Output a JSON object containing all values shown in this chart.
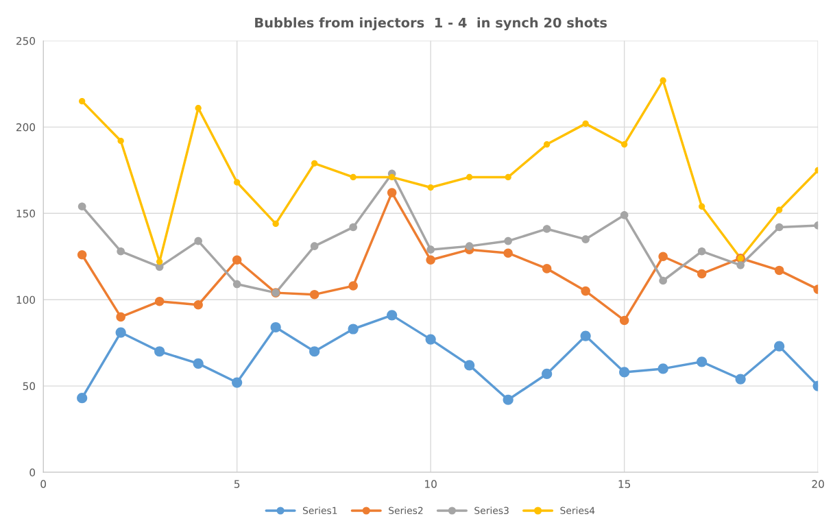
{
  "chart_data": {
    "type": "line",
    "title": "Bubbles from injectors  1 - 4  in synch 20 shots",
    "x": [
      1,
      2,
      3,
      4,
      5,
      6,
      7,
      8,
      9,
      10,
      11,
      12,
      13,
      14,
      15,
      16,
      17,
      18,
      19,
      20
    ],
    "series": [
      {
        "name": "Series1",
        "color": "#5b9bd5",
        "values": [
          43,
          81,
          70,
          63,
          52,
          84,
          70,
          83,
          91,
          77,
          62,
          42,
          57,
          79,
          58,
          60,
          64,
          54,
          73,
          50
        ]
      },
      {
        "name": "Series2",
        "color": "#ed7d31",
        "values": [
          126,
          90,
          99,
          97,
          123,
          104,
          103,
          108,
          162,
          123,
          129,
          127,
          118,
          105,
          88,
          125,
          115,
          124,
          117,
          106
        ]
      },
      {
        "name": "Series3",
        "color": "#a5a5a5",
        "values": [
          154,
          128,
          119,
          134,
          109,
          104,
          131,
          142,
          173,
          129,
          131,
          134,
          141,
          135,
          149,
          111,
          128,
          120,
          142,
          143
        ]
      },
      {
        "name": "Series4",
        "color": "#ffc000",
        "values": [
          215,
          192,
          122,
          211,
          168,
          144,
          179,
          171,
          171,
          165,
          171,
          171,
          190,
          202,
          190,
          227,
          154,
          124,
          152,
          175
        ]
      }
    ],
    "xlim": [
      0,
      20
    ],
    "xticks": [
      0,
      5,
      10,
      15,
      20
    ],
    "ylim": [
      0,
      250
    ],
    "yticks": [
      0,
      50,
      100,
      150,
      200,
      250
    ],
    "grid": true,
    "legend": "bottom",
    "marker": "circle",
    "line_style": "solid"
  }
}
